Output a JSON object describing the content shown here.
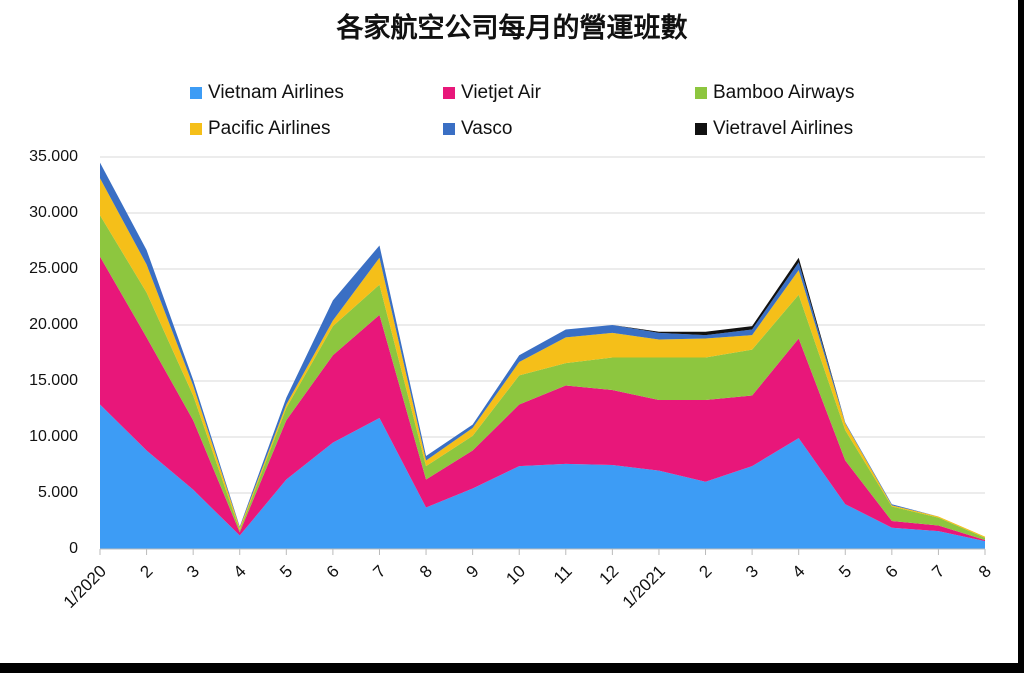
{
  "chart_data": {
    "type": "stacked_area",
    "title": "各家航空公司每月的營運班數",
    "categories": [
      "1/2020",
      "2",
      "3",
      "4",
      "5",
      "6",
      "7",
      "8",
      "9",
      "10",
      "11",
      "12",
      "1/2021",
      "2",
      "3",
      "4",
      "5",
      "6",
      "7",
      "8"
    ],
    "series": [
      {
        "name": "Vietnam Airlines",
        "color": "#3d9cf5",
        "values": [
          12900,
          8800,
          5300,
          1200,
          6200,
          9500,
          11700,
          3700,
          5400,
          7400,
          7600,
          7500,
          7000,
          6000,
          7400,
          9900,
          4000,
          1900,
          1600,
          700
        ]
      },
      {
        "name": "Vietjet Air",
        "color": "#e8177a",
        "values": [
          13200,
          10100,
          6200,
          300,
          5300,
          7800,
          9200,
          2500,
          3400,
          5500,
          7000,
          6700,
          6300,
          7300,
          6300,
          8900,
          3900,
          600,
          500,
          100
        ]
      },
      {
        "name": "Bamboo Airways",
        "color": "#8dc63f",
        "values": [
          3700,
          4000,
          2200,
          200,
          1100,
          2600,
          2700,
          1200,
          1300,
          2600,
          2000,
          2900,
          3800,
          3800,
          4100,
          3900,
          2700,
          1300,
          700,
          200
        ]
      },
      {
        "name": "Pacific Airlines",
        "color": "#f5bf19",
        "values": [
          3300,
          2500,
          900,
          200,
          300,
          500,
          2400,
          500,
          700,
          1200,
          2300,
          2200,
          1600,
          1700,
          1300,
          2200,
          600,
          100,
          100,
          100
        ]
      },
      {
        "name": "Vasco",
        "color": "#3a6fc4",
        "values": [
          1400,
          1300,
          500,
          100,
          600,
          1800,
          1100,
          400,
          300,
          600,
          700,
          700,
          600,
          300,
          500,
          700,
          100,
          100,
          0,
          0
        ]
      },
      {
        "name": "Vietravel Airlines",
        "color": "#111111",
        "values": [
          0,
          0,
          0,
          0,
          0,
          0,
          0,
          0,
          0,
          0,
          0,
          0,
          100,
          300,
          300,
          400,
          0,
          0,
          0,
          0
        ]
      }
    ],
    "ylim": [
      0,
      35000
    ],
    "yticks": [
      0,
      {
        "value": 5000,
        "label": "5.000"
      },
      {
        "value": 10000,
        "label": "10.000"
      },
      {
        "value": 15000,
        "label": "15.000"
      },
      {
        "value": 20000,
        "label": "20.000"
      },
      {
        "value": 25000,
        "label": "25.000"
      },
      {
        "value": 30000,
        "label": "30.000"
      },
      {
        "value": 35000,
        "label": "35.000"
      }
    ],
    "grid": true
  }
}
